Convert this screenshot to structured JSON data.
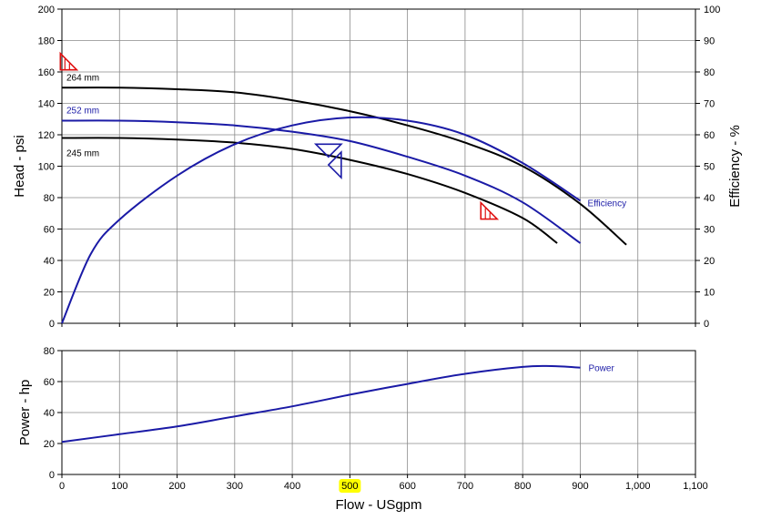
{
  "colors": {
    "grid": "#8a8a8a",
    "axis": "#000000",
    "curve_black": "#000000",
    "curve_blue": "#1a1aa6",
    "marker_red": "#e01010",
    "marker_blue": "#1a1aa6",
    "highlight": "#ffff00"
  },
  "chart_data": [
    {
      "type": "line",
      "xlabel": "",
      "ylabel": "Head - psi",
      "y2label": "Efficiency - %",
      "xlim": [
        0,
        1100
      ],
      "ylim": [
        0,
        200
      ],
      "y2lim": [
        0,
        100
      ],
      "grid": true,
      "x_ticks": [
        0,
        100,
        200,
        300,
        400,
        500,
        600,
        700,
        800,
        900,
        1000,
        1100
      ],
      "y_ticks": [
        "0",
        "20",
        "40",
        "60",
        "80",
        "100",
        "120",
        "140",
        "160",
        "180",
        "200"
      ],
      "y2_ticks": [
        "0",
        "10",
        "20",
        "30",
        "40",
        "50",
        "60",
        "70",
        "80",
        "90",
        "100"
      ],
      "series": [
        {
          "name": "264 mm",
          "color": "#000000",
          "axis": "left",
          "x": [
            0,
            100,
            200,
            300,
            400,
            500,
            600,
            700,
            800,
            900,
            980
          ],
          "y": [
            150,
            150,
            149,
            147,
            142,
            135,
            126,
            115,
            100,
            76,
            50
          ]
        },
        {
          "name": "252 mm",
          "color": "#1a1aa6",
          "axis": "left",
          "x": [
            0,
            100,
            200,
            300,
            400,
            500,
            600,
            700,
            800,
            900
          ],
          "y": [
            129,
            129,
            128,
            126,
            122,
            116,
            106,
            94,
            77,
            51
          ]
        },
        {
          "name": "245 mm",
          "color": "#000000",
          "axis": "left",
          "x": [
            0,
            100,
            200,
            300,
            400,
            500,
            600,
            700,
            800,
            860
          ],
          "y": [
            118,
            118,
            117,
            115,
            111,
            104,
            95,
            83,
            67,
            51
          ]
        },
        {
          "name": "Efficiency",
          "color": "#1a1aa6",
          "axis": "right",
          "x": [
            0,
            50,
            100,
            200,
            300,
            400,
            500,
            600,
            700,
            800,
            900
          ],
          "y": [
            0,
            22,
            33,
            47,
            57,
            63,
            65.5,
            64.5,
            60,
            51,
            39
          ]
        }
      ],
      "markers": [
        {
          "shape": "flag-triangle",
          "color": "#e01010",
          "x": 10,
          "y": 166
        },
        {
          "shape": "flag-triangle",
          "color": "#e01010",
          "x": 740,
          "y": 71
        },
        {
          "shape": "triangle-down",
          "color": "#1a1aa6",
          "x": 485,
          "y": 114
        },
        {
          "shape": "triangle-up",
          "color": "#1a1aa6",
          "x": 485,
          "y": 102
        }
      ]
    },
    {
      "type": "line",
      "xlabel": "Flow - USgpm",
      "ylabel": "Power - hp",
      "xlim": [
        0,
        1100
      ],
      "ylim": [
        0,
        80
      ],
      "grid": true,
      "x_ticks": [
        "0",
        "100",
        "200",
        "300",
        "400",
        "500",
        "600",
        "700",
        "800",
        "900",
        "1,000",
        "1,100"
      ],
      "x_tick_highlight": "500",
      "y_ticks": [
        "0",
        "20",
        "40",
        "60",
        "80"
      ],
      "series": [
        {
          "name": "Power",
          "color": "#1a1aa6",
          "x": [
            0,
            100,
            200,
            300,
            400,
            500,
            600,
            700,
            800,
            850,
            900
          ],
          "y": [
            21,
            26,
            31,
            37.5,
            44,
            51.5,
            58.5,
            65,
            69.5,
            70,
            69
          ]
        }
      ]
    }
  ]
}
